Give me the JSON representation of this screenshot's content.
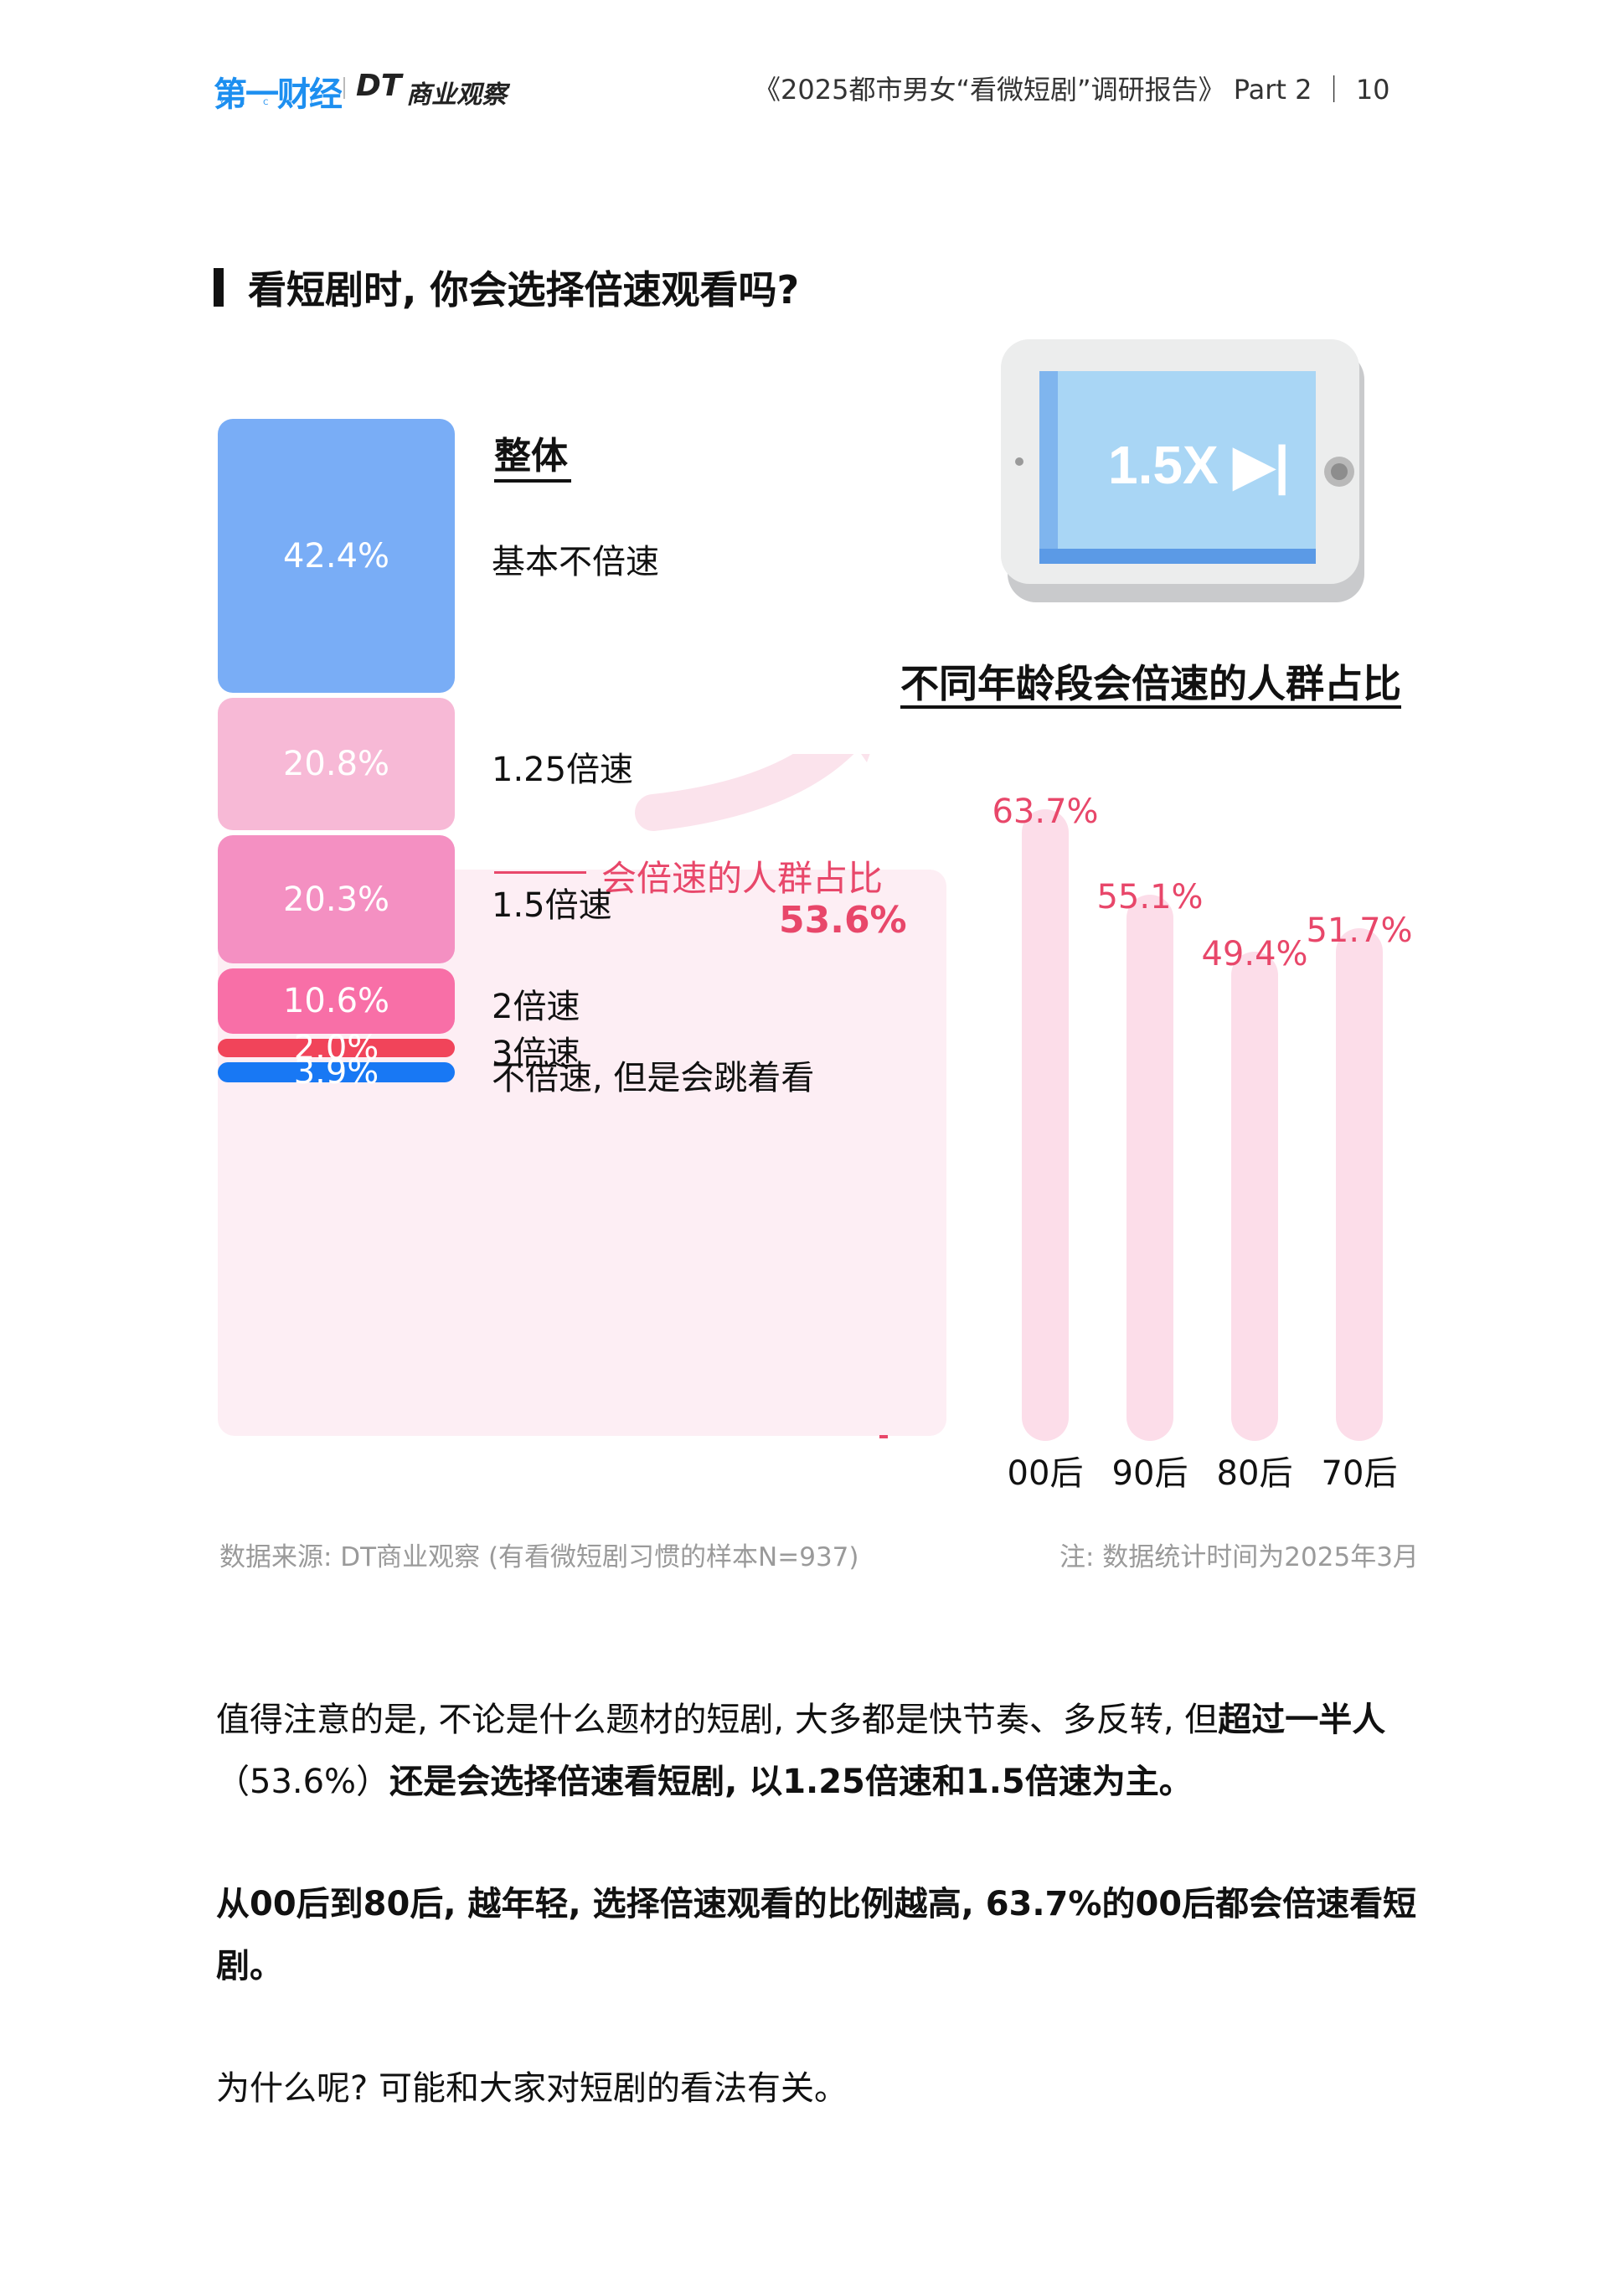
{
  "header": {
    "logo_yicai": "第一财经",
    "logo_yicai_sub": "YICAI",
    "logo_dt": "DT",
    "logo_dt_text": "商业观察",
    "report_title": "《2025都市男女“看微短剧”调研报告》 Part 2 ｜ 10"
  },
  "section_title": "看短剧时, 你会选择倍速观看吗?",
  "left_chart": {
    "heading": "整体",
    "bracket_label": "会倍速的人群占比",
    "bracket_value": "53.6%",
    "colors": [
      "#79adf6",
      "#f7b9d6",
      "#f490c2",
      "#f86fa7",
      "#f1445a",
      "#1878f4"
    ]
  },
  "chart_data": [
    {
      "type": "bar",
      "categories": [
        "基本不倍速",
        "1.25倍速",
        "1.5倍速",
        "2倍速",
        "3倍速",
        "不倍速, 但是会跳着看"
      ],
      "values": [
        42.4,
        20.8,
        20.3,
        10.6,
        2.0,
        3.9
      ],
      "labels": [
        "42.4%",
        "20.8%",
        "20.3%",
        "10.6%",
        "2.0%",
        "3.9%"
      ],
      "title": "整体",
      "stacked": true
    },
    {
      "type": "bar",
      "title": "不同年龄段会倍速的人群占比",
      "categories": [
        "00后",
        "90后",
        "80后",
        "70后"
      ],
      "values": [
        63.7,
        55.1,
        49.4,
        51.7
      ],
      "labels": [
        "63.7%",
        "55.1%",
        "49.4%",
        "51.7%"
      ]
    }
  ],
  "illustration": {
    "screen_text": "1.5X ▶|"
  },
  "footer": {
    "source": "数据来源: DT商业观察 (有看微短剧习惯的样本N=937)",
    "note": "注: 数据统计时间为2025年3月"
  },
  "body": {
    "p1_a": "值得注意的是, 不论是什么题材的短剧, 大多都是快节奏、多反转, 但",
    "p1_b": "超过一半人",
    "p1_c": "（53.6%）",
    "p1_d": "还是会选择倍速看短剧, 以1.25倍速和1.5倍速为主。",
    "p2": "从00后到80后, 越年轻, 选择倍速观看的比例越高, 63.7%的00后都会倍速看短剧。",
    "p3": "为什么呢? 可能和大家对短剧的看法有关。"
  }
}
